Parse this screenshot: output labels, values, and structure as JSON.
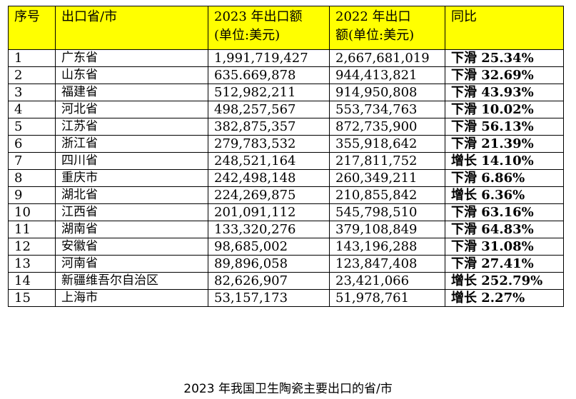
{
  "table": {
    "headers": {
      "rank": "序号",
      "region": "出口省/市",
      "y2023_line1": "2023 年出口额",
      "y2023_line2": "(单位:美元)",
      "y2022_line1": "2022 年出口",
      "y2022_line2": "额(单位:美元)",
      "yoy": "同比"
    },
    "rows": [
      {
        "rank": "1",
        "region": "广东省",
        "v2023": "1,991,719,427",
        "v2022": "2,667,681,019",
        "yoy": "下滑 25.34%"
      },
      {
        "rank": "2",
        "region": "山东省",
        "v2023": "635.669,878",
        "v2022": "944,413,821",
        "yoy": "下滑 32.69%"
      },
      {
        "rank": "3",
        "region": "福建省",
        "v2023": "512,982,211",
        "v2022": "914,950,808",
        "yoy": "下滑 43.93%"
      },
      {
        "rank": "4",
        "region": "河北省",
        "v2023": "498,257,567",
        "v2022": "553,734,763",
        "yoy": "下滑 10.02%"
      },
      {
        "rank": "5",
        "region": "江苏省",
        "v2023": "382,875,357",
        "v2022": "872,735,900",
        "yoy": "下滑 56.13%"
      },
      {
        "rank": "6",
        "region": "浙江省",
        "v2023": "279,783,532",
        "v2022": "355,918,642",
        "yoy": "下滑 21.39%"
      },
      {
        "rank": "7",
        "region": "四川省",
        "v2023": "248,521,164",
        "v2022": "217,811,752",
        "yoy": "增长 14.10%"
      },
      {
        "rank": "8",
        "region": "重庆市",
        "v2023": "242,498,148",
        "v2022": "260,349,211",
        "yoy": "下滑 6.86%"
      },
      {
        "rank": "9",
        "region": "湖北省",
        "v2023": "224,269,875",
        "v2022": "210,855,842",
        "yoy": "增长 6.36%"
      },
      {
        "rank": "10",
        "region": "江西省",
        "v2023": "201,091,112",
        "v2022": "545,798,510",
        "yoy": "下滑 63.16%"
      },
      {
        "rank": "11",
        "region": "湖南省",
        "v2023": "133,320,276",
        "v2022": "379,108,849",
        "yoy": "下滑 64.83%"
      },
      {
        "rank": "12",
        "region": "安徽省",
        "v2023": "98,685,002",
        "v2022": "143,196,288",
        "yoy": "下滑 31.08%"
      },
      {
        "rank": "13",
        "region": "河南省",
        "v2023": "89,896,058",
        "v2022": "123,847,408",
        "yoy": "下滑 27.41%"
      },
      {
        "rank": "14",
        "region": "新疆维吾尔自治区",
        "v2023": "82,626,907",
        "v2022": "23,421,066",
        "yoy": "增长 252.79%"
      },
      {
        "rank": "15",
        "region": "上海市",
        "v2023": "53,157,173",
        "v2022": "51,978,761",
        "yoy": "增长 2.27%"
      }
    ]
  },
  "caption": "2023 年我国卫生陶瓷主要出口的省/市",
  "colors": {
    "header_background": "#ffff00",
    "border": "#000000"
  }
}
